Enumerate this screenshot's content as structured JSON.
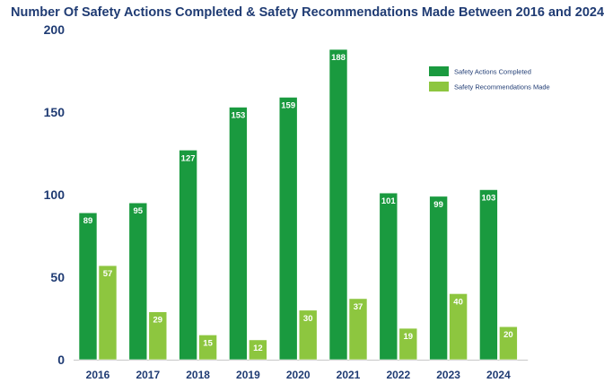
{
  "chart_data": {
    "type": "bar",
    "title": "Number Of Safety Actions Completed & Safety Recommendations Made Between 2016 and 2024",
    "xlabel": "",
    "ylabel": "",
    "categories": [
      "2016",
      "2017",
      "2018",
      "2019",
      "2020",
      "2021",
      "2022",
      "2023",
      "2024"
    ],
    "series": [
      {
        "name": "Safety Actions Completed",
        "color": "#1a9a3f",
        "values": [
          89,
          95,
          127,
          153,
          159,
          188,
          101,
          99,
          103
        ]
      },
      {
        "name": "Safety Recommendations Made",
        "color": "#8dc63f",
        "values": [
          57,
          29,
          15,
          12,
          30,
          37,
          19,
          40,
          20
        ]
      }
    ],
    "ylim": [
      0,
      200
    ],
    "yticks": [
      "0",
      "50",
      "100",
      "150",
      "200"
    ],
    "grid": false,
    "legend_position": "top-right",
    "data_labels": true
  }
}
